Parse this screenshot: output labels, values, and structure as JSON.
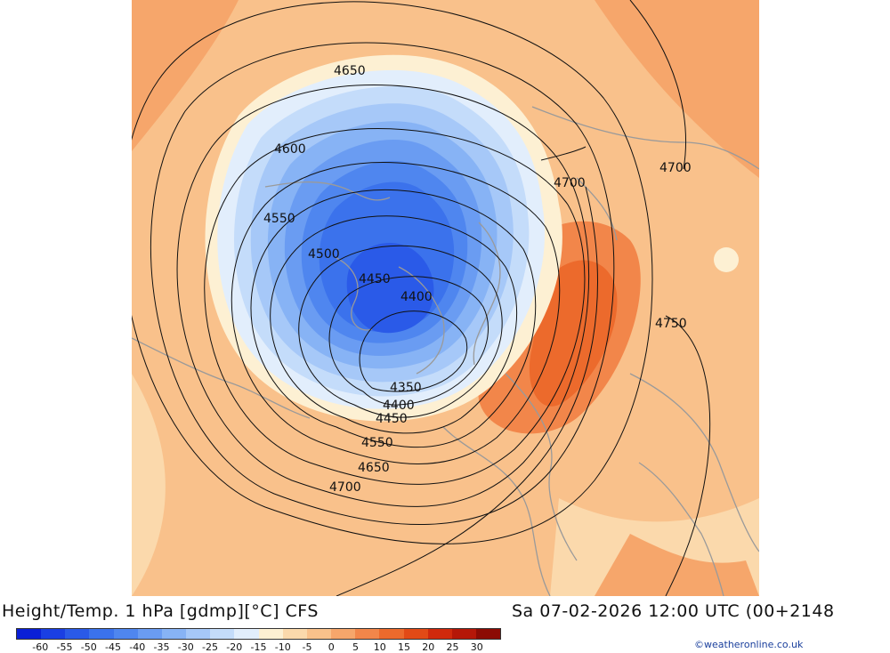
{
  "header": {
    "title": "Height/Temp. 1 hPa [gdmp][°C] CFS",
    "valid_time": "Sa 07-02-2026 12:00 UTC (00+2148"
  },
  "credit": "©weatheronline.co.uk",
  "legend": {
    "tick_labels": [
      "-60",
      "-55",
      "-50",
      "-45",
      "-40",
      "-35",
      "-30",
      "-25",
      "-20",
      "-15",
      "-10",
      "-5",
      "0",
      "5",
      "10",
      "15",
      "20",
      "25",
      "30"
    ],
    "colors": [
      "#0a1fd6",
      "#1a3fe3",
      "#2a5ae8",
      "#3b72ec",
      "#4f86ef",
      "#6a9cf2",
      "#87b3f5",
      "#a6c8f8",
      "#c4dcfa",
      "#e2eefc",
      "#fdf0d3",
      "#fbd9ac",
      "#f9c18b",
      "#f6a66b",
      "#f2864a",
      "#ec6a2c",
      "#e24a16",
      "#d0290c",
      "#b51708",
      "#8c0b04"
    ]
  },
  "contours": {
    "labels": [
      "4650",
      "4600",
      "4550",
      "4500",
      "4450",
      "4400",
      "4350",
      "4400",
      "4450",
      "4550",
      "4650",
      "4700",
      "4700",
      "4700",
      "4750"
    ]
  }
}
